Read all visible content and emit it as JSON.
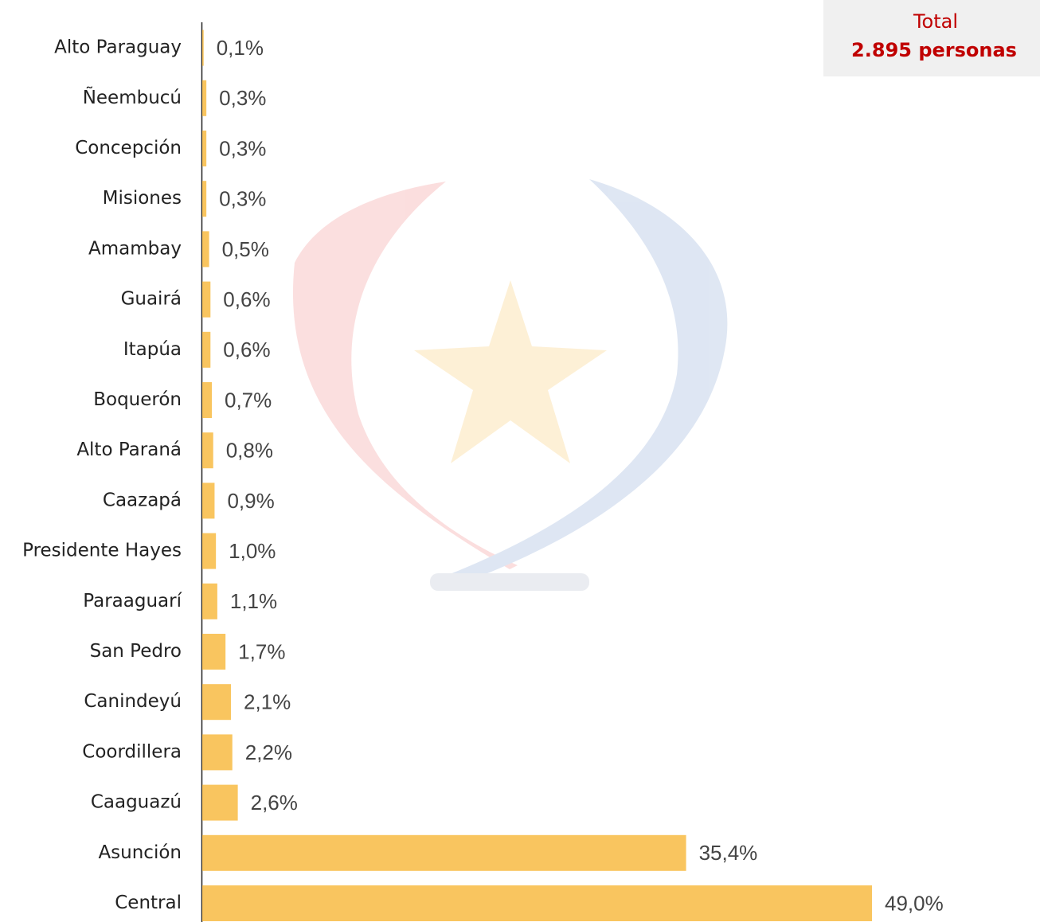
{
  "chart_data": {
    "type": "bar",
    "orientation": "horizontal",
    "color": "#f9c55f",
    "annotations": [
      "Total",
      "2.895 personas"
    ],
    "categories": [
      "Alto Paraguay",
      "Ñeembucú",
      "Concepción",
      "Misiones",
      "Amambay",
      "Guairá",
      "Itapúa",
      "Boquerón",
      "Alto Paraná",
      "Caazapá",
      "Presidente Hayes",
      "Paraaguarí",
      "San Pedro",
      "Canindeyú",
      "Coordillera",
      "Caaguazú",
      "Asunción",
      "Central"
    ],
    "values": [
      0.1,
      0.3,
      0.3,
      0.3,
      0.5,
      0.6,
      0.6,
      0.7,
      0.8,
      0.9,
      1.0,
      1.1,
      1.7,
      2.1,
      2.2,
      2.6,
      35.4,
      49.0
    ],
    "value_labels": [
      "0,1%",
      "0,3%",
      "0,3%",
      "0,3%",
      "0,5%",
      "0,6%",
      "0,6%",
      "0,7%",
      "0,8%",
      "0,9%",
      "1,0%",
      "1,1%",
      "1,7%",
      "2,1%",
      "2,2%",
      "2,6%",
      "35,4%",
      "49,0%"
    ]
  }
}
